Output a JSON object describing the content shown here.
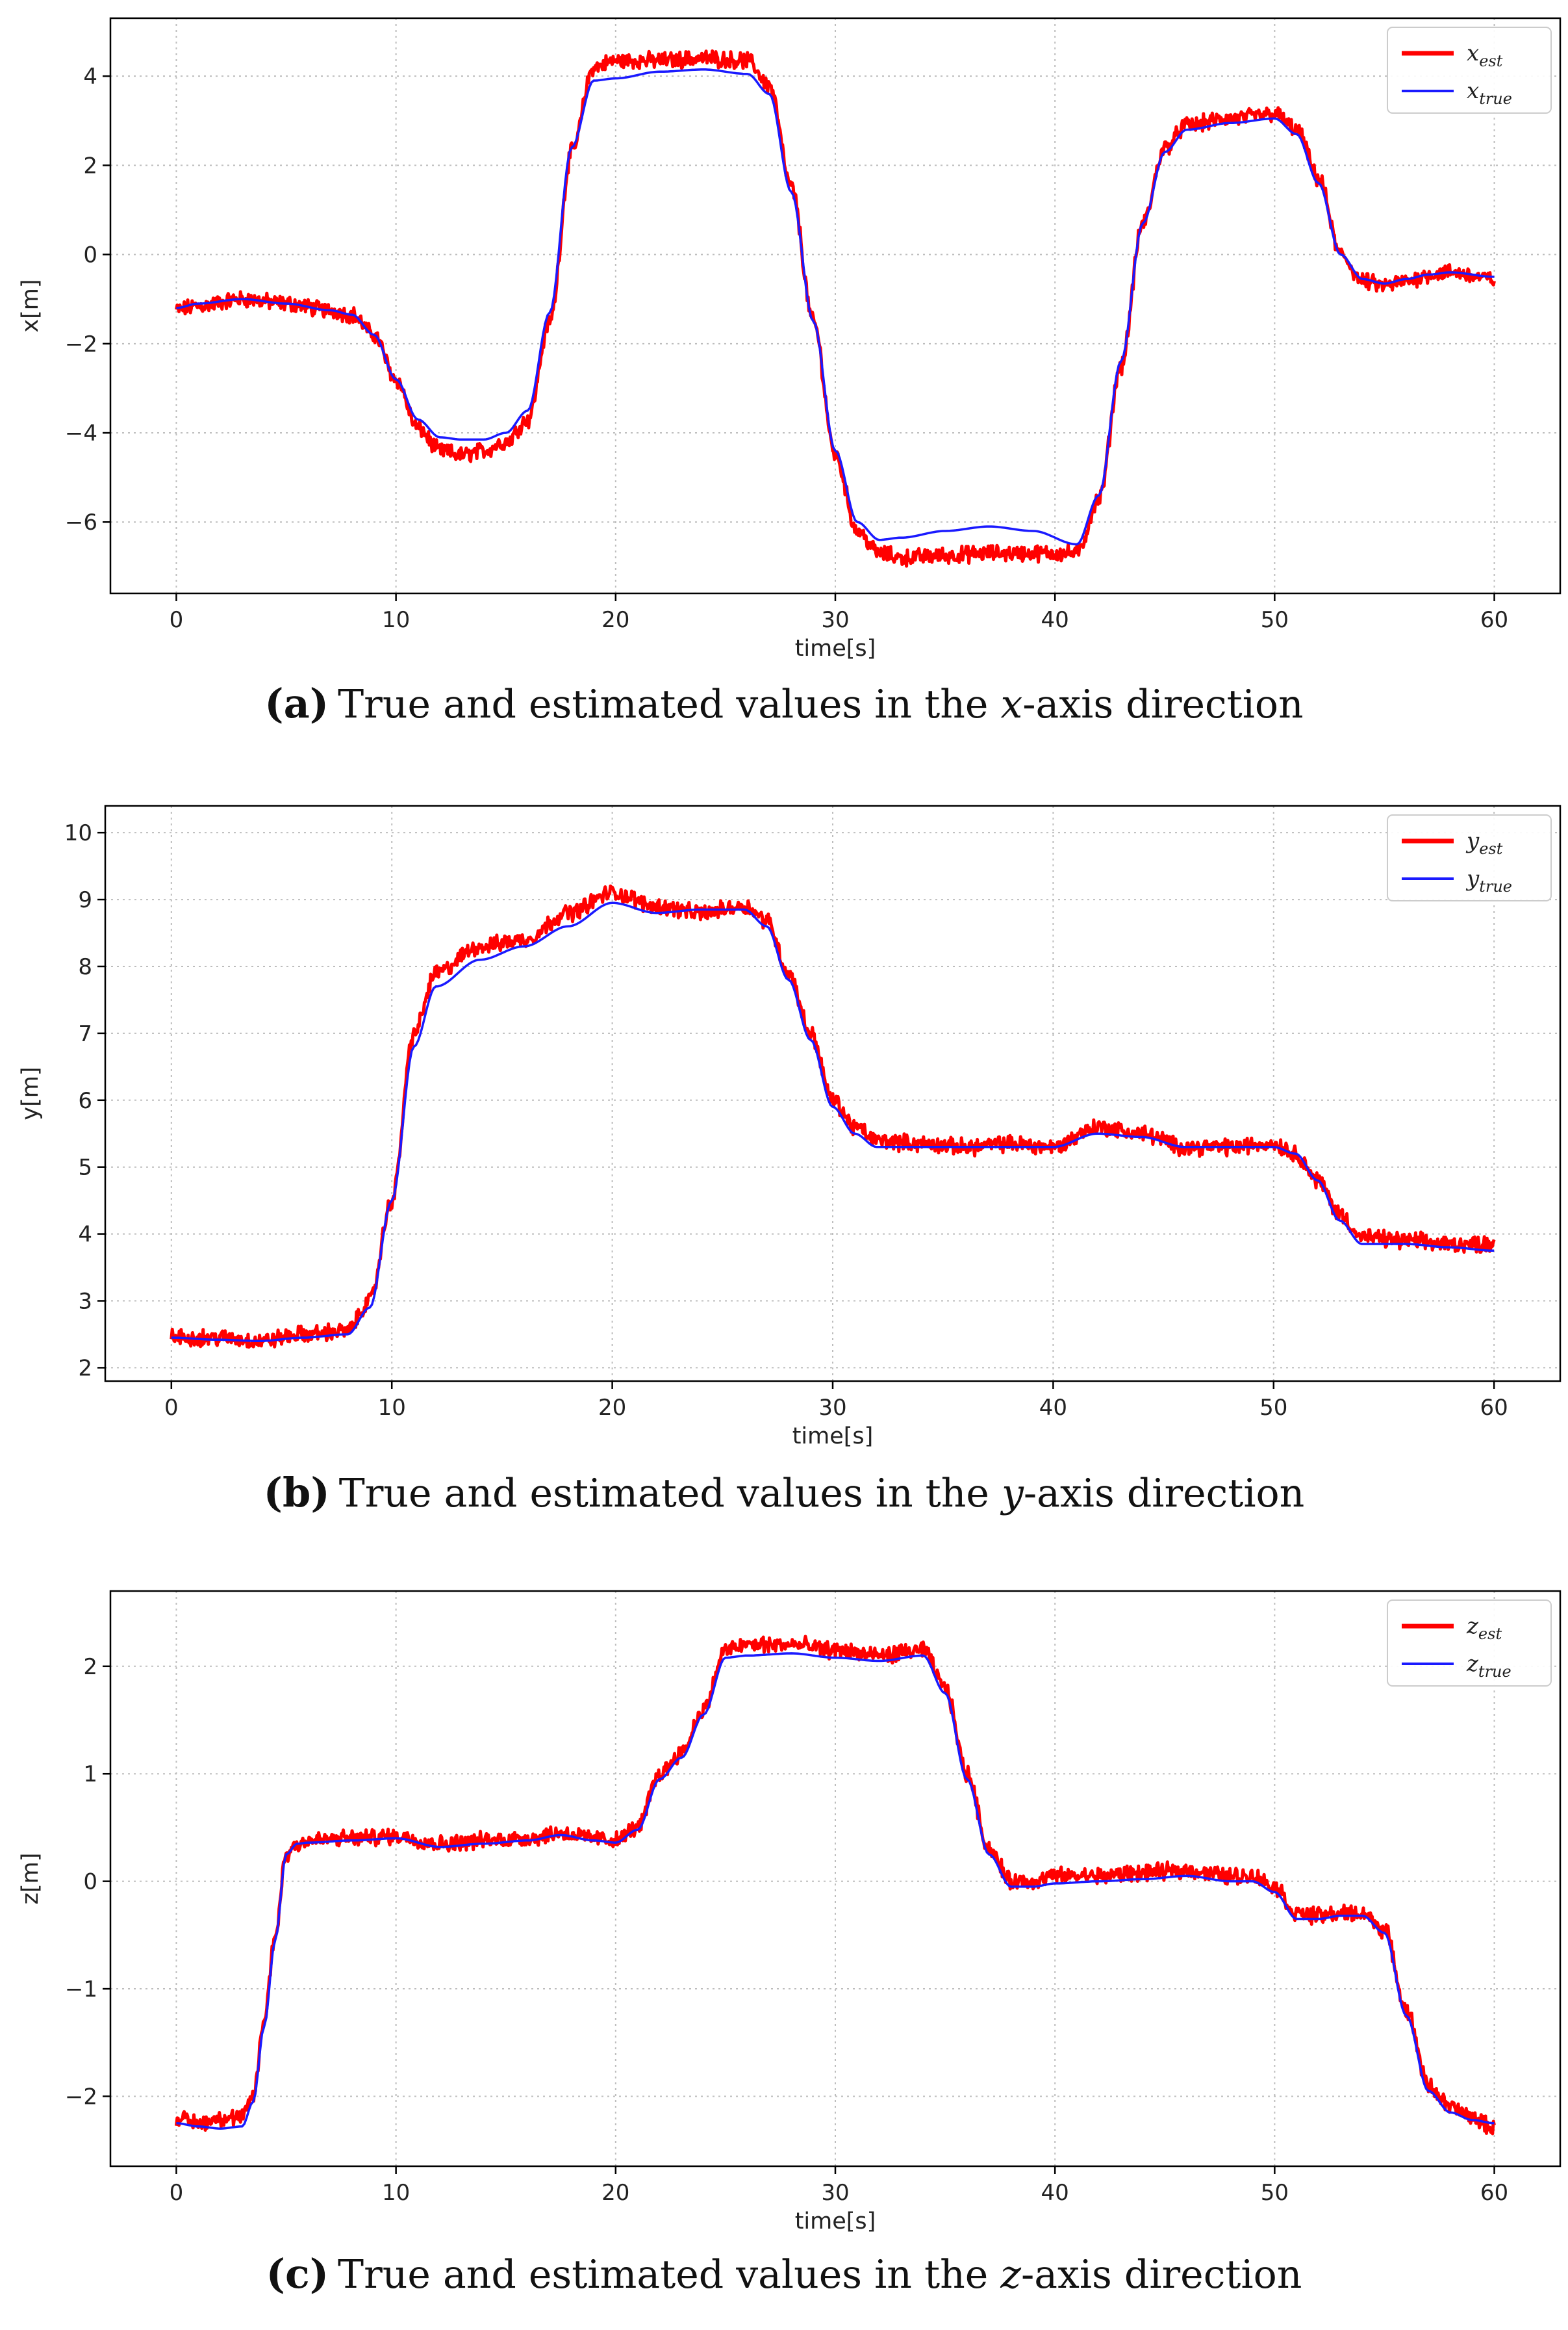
{
  "chart_data": [
    {
      "id": "a",
      "type": "line",
      "title": "",
      "xlabel": "time[s]",
      "ylabel": "x[m]",
      "xlim": [
        -3,
        63
      ],
      "ylim": [
        -7.6,
        5.3
      ],
      "xticks": [
        0,
        10,
        20,
        30,
        40,
        50,
        60
      ],
      "yticks": [
        -6,
        -4,
        -2,
        0,
        2,
        4
      ],
      "xtick_labels": [
        "0",
        "10",
        "20",
        "30",
        "40",
        "50",
        "60"
      ],
      "ytick_labels": [
        "−6",
        "−4",
        "−2",
        "0",
        "2",
        "4"
      ],
      "grid": true,
      "legend_position": "top-right",
      "caption": {
        "letter": "(a)",
        "prefix": "True and estimated values in the ",
        "axis_var": "x",
        "suffix": "-axis direction"
      },
      "series": [
        {
          "name": "x_est",
          "label_base": "x",
          "label_sub": "est",
          "color": "#ff0000",
          "noisy": true,
          "x": [
            0,
            1,
            3,
            5,
            7,
            8,
            9,
            10,
            11,
            12,
            13,
            14,
            15,
            16,
            17,
            18,
            19,
            20,
            22,
            24,
            26,
            27,
            28,
            29,
            30,
            31,
            32,
            33,
            35,
            37,
            39,
            41,
            42,
            43,
            44,
            45,
            46,
            48,
            50,
            51,
            52,
            53,
            54,
            55,
            56,
            57,
            58,
            60
          ],
          "values": [
            -1.25,
            -1.15,
            -1.0,
            -1.1,
            -1.25,
            -1.35,
            -1.8,
            -2.8,
            -3.9,
            -4.4,
            -4.5,
            -4.4,
            -4.2,
            -3.7,
            -1.5,
            2.3,
            4.2,
            4.35,
            4.35,
            4.4,
            4.35,
            3.8,
            1.5,
            -1.5,
            -4.5,
            -6.2,
            -6.7,
            -6.8,
            -6.75,
            -6.7,
            -6.7,
            -6.7,
            -5.5,
            -2.5,
            0.7,
            2.4,
            2.9,
            3.05,
            3.15,
            2.8,
            1.7,
            0.0,
            -0.6,
            -0.7,
            -0.6,
            -0.45,
            -0.4,
            -0.55
          ]
        },
        {
          "name": "x_true",
          "label_base": "x",
          "label_sub": "true",
          "color": "#1a1aff",
          "noisy": false,
          "x": [
            0,
            1,
            3,
            5,
            7,
            8,
            9,
            10,
            11,
            12,
            13,
            14,
            15,
            16,
            17,
            18,
            19,
            20,
            22,
            24,
            26,
            27,
            28,
            29,
            30,
            31,
            32,
            33,
            35,
            37,
            39,
            41,
            42,
            43,
            44,
            45,
            46,
            48,
            50,
            51,
            52,
            53,
            54,
            55,
            56,
            57,
            58,
            60
          ],
          "values": [
            -1.2,
            -1.1,
            -1.0,
            -1.1,
            -1.25,
            -1.35,
            -1.8,
            -2.8,
            -3.7,
            -4.1,
            -4.15,
            -4.15,
            -4.0,
            -3.5,
            -1.3,
            2.4,
            3.9,
            3.95,
            4.1,
            4.15,
            4.05,
            3.6,
            1.4,
            -1.5,
            -4.4,
            -6.0,
            -6.4,
            -6.35,
            -6.2,
            -6.1,
            -6.2,
            -6.5,
            -5.4,
            -2.4,
            0.7,
            2.3,
            2.8,
            2.95,
            3.05,
            2.7,
            1.6,
            0.0,
            -0.55,
            -0.65,
            -0.55,
            -0.45,
            -0.4,
            -0.5
          ]
        }
      ]
    },
    {
      "id": "b",
      "type": "line",
      "title": "",
      "xlabel": "time[s]",
      "ylabel": "y[m]",
      "xlim": [
        -3,
        63
      ],
      "ylim": [
        1.8,
        10.4
      ],
      "xticks": [
        0,
        10,
        20,
        30,
        40,
        50,
        60
      ],
      "yticks": [
        2,
        3,
        4,
        5,
        6,
        7,
        8,
        9,
        10
      ],
      "xtick_labels": [
        "0",
        "10",
        "20",
        "30",
        "40",
        "50",
        "60"
      ],
      "ytick_labels": [
        "2",
        "3",
        "4",
        "5",
        "6",
        "7",
        "8",
        "9",
        "10"
      ],
      "grid": true,
      "legend_position": "top-right",
      "caption": {
        "letter": "(b)",
        "prefix": "True and estimated values in the ",
        "axis_var": "y",
        "suffix": "-axis direction"
      },
      "series": [
        {
          "name": "y_est",
          "label_base": "y",
          "label_sub": "est",
          "color": "#ff0000",
          "noisy": true,
          "x": [
            0,
            2,
            4,
            6,
            8,
            9,
            10,
            11,
            12,
            14,
            16,
            18,
            20,
            22,
            24,
            26,
            27,
            28,
            29,
            30,
            31,
            32,
            34,
            36,
            38,
            40,
            42,
            44,
            46,
            48,
            50,
            51,
            52,
            53,
            54,
            56,
            58,
            60
          ],
          "values": [
            2.45,
            2.45,
            2.4,
            2.5,
            2.55,
            3.0,
            4.5,
            7.0,
            7.9,
            8.3,
            8.4,
            8.8,
            9.1,
            8.9,
            8.8,
            8.9,
            8.7,
            7.9,
            7.0,
            6.0,
            5.6,
            5.4,
            5.35,
            5.3,
            5.35,
            5.3,
            5.6,
            5.5,
            5.3,
            5.3,
            5.35,
            5.2,
            4.8,
            4.3,
            3.95,
            3.9,
            3.85,
            3.85
          ]
        },
        {
          "name": "y_true",
          "label_base": "y",
          "label_sub": "true",
          "color": "#1a1aff",
          "noisy": false,
          "x": [
            0,
            2,
            4,
            6,
            8,
            9,
            10,
            11,
            12,
            14,
            16,
            18,
            20,
            22,
            24,
            26,
            27,
            28,
            29,
            30,
            31,
            32,
            34,
            36,
            38,
            40,
            42,
            44,
            46,
            48,
            50,
            51,
            52,
            53,
            54,
            56,
            58,
            60
          ],
          "values": [
            2.45,
            2.42,
            2.4,
            2.45,
            2.5,
            2.9,
            4.5,
            6.8,
            7.7,
            8.1,
            8.3,
            8.6,
            8.95,
            8.8,
            8.85,
            8.85,
            8.6,
            7.8,
            6.9,
            5.9,
            5.5,
            5.3,
            5.3,
            5.3,
            5.3,
            5.3,
            5.5,
            5.45,
            5.3,
            5.3,
            5.3,
            5.2,
            4.8,
            4.2,
            3.85,
            3.85,
            3.8,
            3.75
          ]
        }
      ]
    },
    {
      "id": "c",
      "type": "line",
      "title": "",
      "xlabel": "time[s]",
      "ylabel": "z[m]",
      "xlim": [
        -3,
        63
      ],
      "ylim": [
        -2.65,
        2.7
      ],
      "xticks": [
        0,
        10,
        20,
        30,
        40,
        50,
        60
      ],
      "yticks": [
        -2,
        -1,
        0,
        1,
        2
      ],
      "xtick_labels": [
        "0",
        "10",
        "20",
        "30",
        "40",
        "50",
        "60"
      ],
      "ytick_labels": [
        "−2",
        "−1",
        "0",
        "1",
        "2"
      ],
      "grid": true,
      "legend_position": "top-right",
      "caption": {
        "letter": "(c)",
        "prefix": "True and estimated values in the ",
        "axis_var": "z",
        "suffix": "-axis direction"
      },
      "series": [
        {
          "name": "z_est",
          "label_base": "z",
          "label_sub": "est",
          "color": "#ff0000",
          "noisy": true,
          "x": [
            0,
            1,
            2,
            3,
            3.5,
            4,
            4.5,
            5,
            5.5,
            6,
            8,
            10,
            12,
            14,
            16,
            17.5,
            19,
            20,
            21,
            22,
            23,
            24,
            25,
            26,
            28,
            30,
            32,
            34,
            35,
            36,
            37,
            38,
            39,
            40,
            42,
            44,
            46,
            48,
            49,
            50,
            51,
            52,
            53,
            54,
            55,
            56,
            57,
            58,
            59,
            60
          ],
          "values": [
            -2.2,
            -2.25,
            -2.2,
            -2.2,
            -2.0,
            -1.3,
            -0.5,
            0.25,
            0.35,
            0.38,
            0.4,
            0.42,
            0.35,
            0.38,
            0.4,
            0.45,
            0.4,
            0.38,
            0.5,
            1.0,
            1.2,
            1.6,
            2.15,
            2.2,
            2.2,
            2.15,
            2.1,
            2.15,
            1.8,
            1.0,
            0.3,
            0.0,
            0.0,
            0.05,
            0.05,
            0.08,
            0.1,
            0.05,
            0.05,
            -0.05,
            -0.3,
            -0.32,
            -0.3,
            -0.3,
            -0.45,
            -1.2,
            -1.9,
            -2.1,
            -2.2,
            -2.3
          ]
        },
        {
          "name": "z_true",
          "label_base": "z",
          "label_sub": "true",
          "color": "#1a1aff",
          "noisy": false,
          "x": [
            0,
            1,
            2,
            3,
            3.5,
            4,
            4.5,
            5,
            5.5,
            6,
            8,
            10,
            12,
            14,
            16,
            17.5,
            19,
            20,
            21,
            22,
            23,
            24,
            25,
            26,
            28,
            30,
            32,
            34,
            35,
            36,
            37,
            38,
            39,
            40,
            42,
            44,
            46,
            48,
            49,
            50,
            51,
            52,
            53,
            54,
            55,
            56,
            57,
            58,
            59,
            60
          ],
          "values": [
            -2.25,
            -2.28,
            -2.3,
            -2.28,
            -2.05,
            -1.35,
            -0.55,
            0.25,
            0.35,
            0.36,
            0.38,
            0.4,
            0.32,
            0.35,
            0.38,
            0.43,
            0.38,
            0.36,
            0.48,
            0.95,
            1.15,
            1.55,
            2.08,
            2.1,
            2.12,
            2.08,
            2.05,
            2.1,
            1.75,
            0.95,
            0.25,
            -0.05,
            -0.05,
            -0.02,
            0.0,
            0.02,
            0.05,
            0.0,
            0.0,
            -0.1,
            -0.35,
            -0.35,
            -0.32,
            -0.32,
            -0.48,
            -1.25,
            -1.95,
            -2.15,
            -2.22,
            -2.25
          ]
        }
      ]
    }
  ]
}
